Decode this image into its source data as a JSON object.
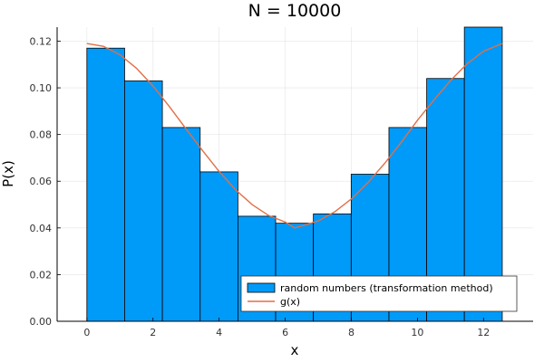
{
  "chart_data": {
    "type": "bar",
    "title": "N = 10000",
    "xlabel": "x",
    "ylabel": "P(x)",
    "xlim": [
      -0.9,
      13.5
    ],
    "ylim": [
      0,
      0.126
    ],
    "x_ticks": [
      0,
      2,
      4,
      6,
      8,
      10,
      12
    ],
    "x_tick_labels": [
      "0",
      "2",
      "4",
      "6",
      "8",
      "10",
      "12"
    ],
    "y_ticks": [
      0,
      0.02,
      0.04,
      0.06,
      0.08,
      0.1,
      0.12
    ],
    "y_tick_labels": [
      "0.00",
      "0.02",
      "0.04",
      "0.06",
      "0.08",
      "0.10",
      "0.12"
    ],
    "grid": true,
    "legend_position": "bottom-right",
    "series": [
      {
        "name": "random numbers (transformation method)",
        "kind": "histogram",
        "color": "#009af9",
        "bin_edges": [
          0,
          1.142,
          2.284,
          3.427,
          4.569,
          5.711,
          6.853,
          7.996,
          9.138,
          10.28,
          11.42,
          12.566
        ],
        "values": [
          0.117,
          0.103,
          0.083,
          0.064,
          0.045,
          0.042,
          0.046,
          0.063,
          0.083,
          0.104,
          0.126
        ]
      },
      {
        "name": "g(x)",
        "kind": "line",
        "color": "#e26f46",
        "x": [
          0,
          0.5,
          1,
          1.5,
          2,
          2.5,
          3,
          3.5,
          4,
          4.5,
          5,
          5.5,
          6,
          6.283,
          6.5,
          7,
          7.5,
          8,
          8.5,
          9,
          9.5,
          10,
          10.5,
          11,
          11.5,
          12,
          12.566
        ],
        "y": [
          0.119,
          0.1178,
          0.1142,
          0.1084,
          0.1008,
          0.0919,
          0.0824,
          0.0731,
          0.0642,
          0.0563,
          0.05,
          0.0453,
          0.0425,
          0.04,
          0.0408,
          0.043,
          0.0469,
          0.0524,
          0.0594,
          0.0675,
          0.0765,
          0.0861,
          0.0948,
          0.1031,
          0.1103,
          0.1157,
          0.119
        ]
      }
    ]
  }
}
